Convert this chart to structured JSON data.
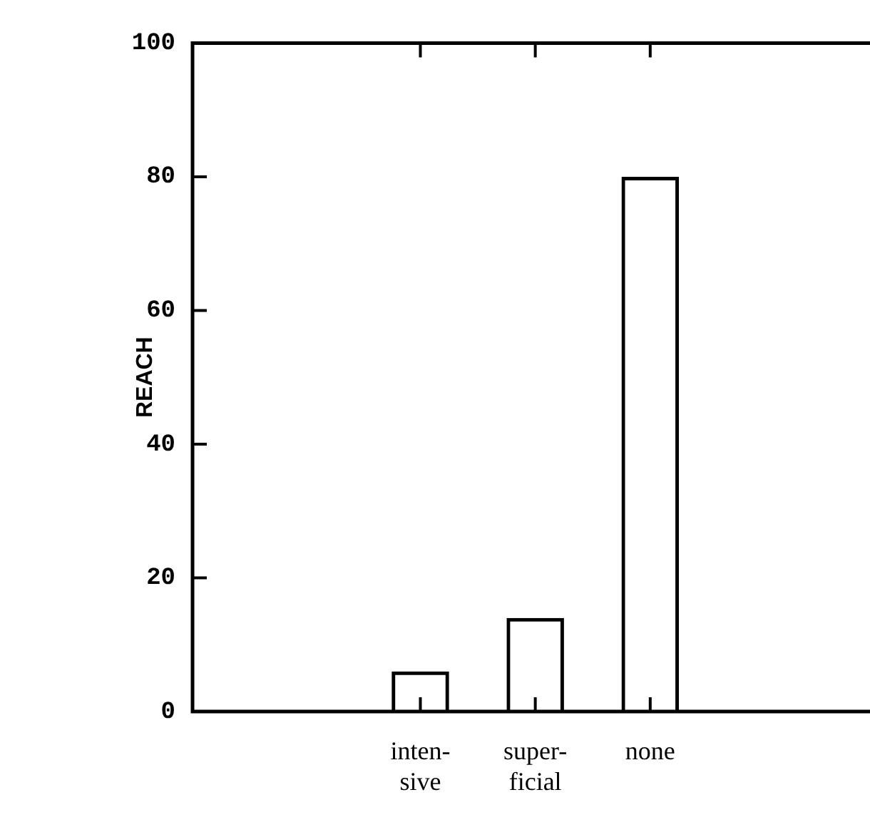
{
  "chart_data": {
    "type": "bar",
    "ylabel": "REACH",
    "categories": [
      "inten-\nsive",
      "super-\nficial",
      "none"
    ],
    "values": [
      6,
      14,
      80
    ],
    "color": "#000000",
    "ylim": [
      0,
      100
    ],
    "yticks": [
      0,
      20,
      40,
      60,
      80,
      100
    ],
    "grid": false
  }
}
